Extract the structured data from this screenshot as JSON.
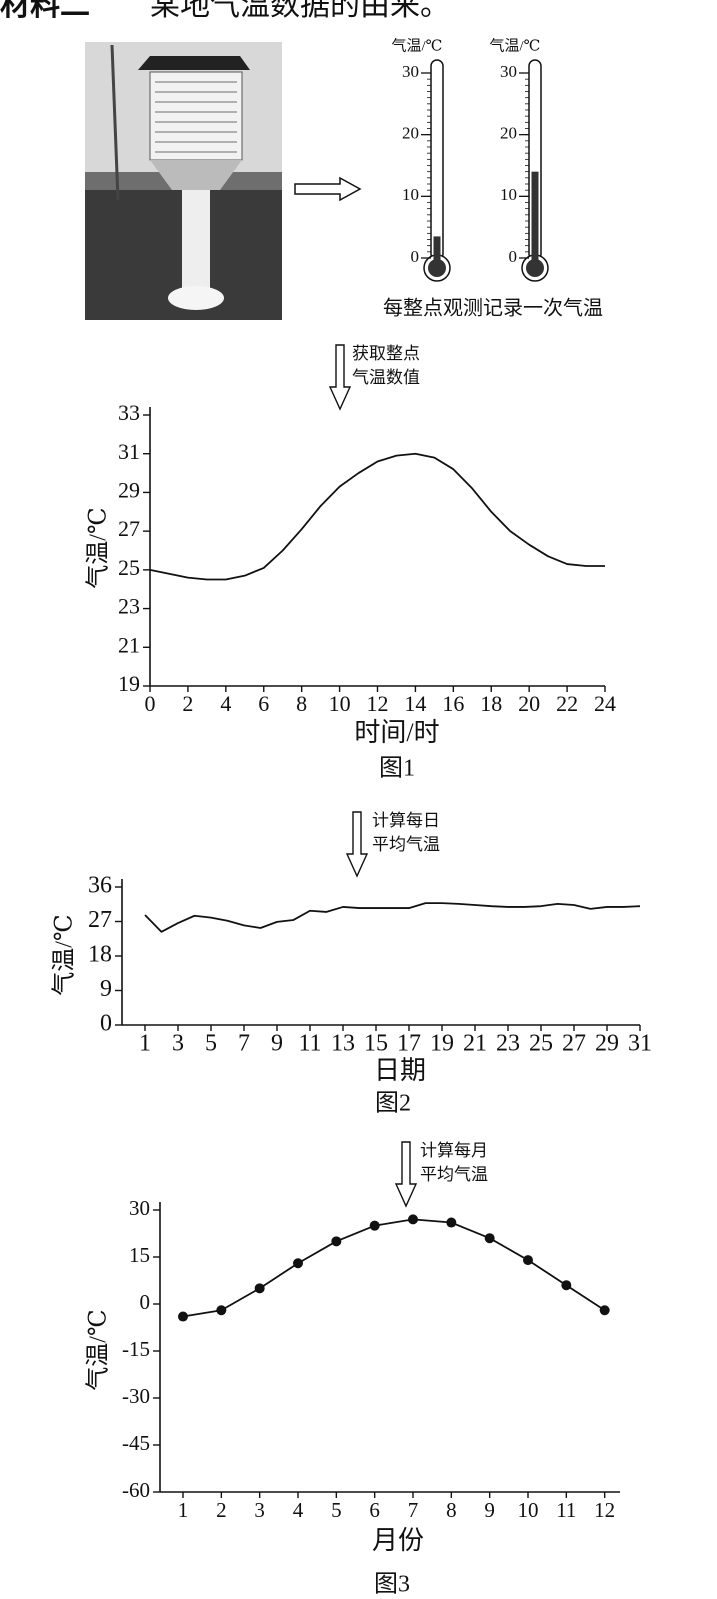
{
  "heading": {
    "label": "材料二",
    "text": "某地气温数据的由来。"
  },
  "thermometers": {
    "ylabel": "气温/℃",
    "ticks": [
      0,
      10,
      20,
      30
    ],
    "readings": [
      3.5,
      14
    ],
    "caption": "每整点观测记录一次气温"
  },
  "arrows": [
    [
      "获取整点",
      "气温数值"
    ],
    [
      "计算每日",
      "平均气温"
    ],
    [
      "计算每月",
      "平均气温"
    ]
  ],
  "chart_data": [
    {
      "type": "line",
      "ylabel": "气温/℃",
      "xlabel": "时间/时",
      "caption": "图1",
      "x": [
        0,
        1,
        2,
        3,
        4,
        5,
        6,
        7,
        8,
        9,
        10,
        11,
        12,
        13,
        14,
        15,
        16,
        17,
        18,
        19,
        20,
        21,
        22,
        23,
        24
      ],
      "values": [
        25.0,
        24.8,
        24.6,
        24.5,
        24.5,
        24.7,
        25.1,
        26.0,
        27.1,
        28.3,
        29.3,
        30.0,
        30.6,
        30.9,
        31.0,
        30.8,
        30.2,
        29.2,
        28.0,
        27.0,
        26.3,
        25.7,
        25.3,
        25.2,
        25.2
      ],
      "xlim": [
        0,
        24
      ],
      "ylim": [
        19,
        33
      ],
      "xticks": [
        0,
        2,
        4,
        6,
        8,
        10,
        12,
        14,
        16,
        18,
        20,
        22,
        24
      ],
      "yticks": [
        19,
        21,
        23,
        25,
        27,
        29,
        31,
        33
      ],
      "markers": false,
      "color": "#111111"
    },
    {
      "type": "line",
      "ylabel": "气温/℃",
      "xlabel": "日期",
      "caption": "图2",
      "x": [
        1,
        2,
        3,
        4,
        5,
        6,
        7,
        8,
        9,
        10,
        11,
        12,
        13,
        14,
        15,
        16,
        17,
        18,
        19,
        20,
        21,
        22,
        23,
        24,
        25,
        26,
        27,
        28,
        29,
        30,
        31
      ],
      "values": [
        28.7,
        24.3,
        26.6,
        28.5,
        28.0,
        27.2,
        26.0,
        25.3,
        26.9,
        27.4,
        29.8,
        29.5,
        30.8,
        30.5,
        30.5,
        30.5,
        30.5,
        31.8,
        31.8,
        31.6,
        31.3,
        31.0,
        30.8,
        30.8,
        31.0,
        31.6,
        31.3,
        30.3,
        30.8,
        30.8,
        31.0
      ],
      "xlim": [
        0,
        31
      ],
      "ylim": [
        0,
        36
      ],
      "xticks": [
        1,
        3,
        5,
        7,
        9,
        11,
        13,
        15,
        17,
        19,
        21,
        23,
        25,
        27,
        29,
        31
      ],
      "yticks": [
        0,
        9,
        18,
        27,
        36
      ],
      "markers": false,
      "color": "#111111"
    },
    {
      "type": "line",
      "ylabel": "气温/℃",
      "xlabel": "月份",
      "caption": "图3",
      "x": [
        1,
        2,
        3,
        4,
        5,
        6,
        7,
        8,
        9,
        10,
        11,
        12
      ],
      "values": [
        -4,
        -2,
        5,
        13,
        20,
        25,
        27,
        26,
        21,
        14,
        6,
        -2
      ],
      "xlim": [
        0.4,
        12.4
      ],
      "ylim": [
        -60,
        30
      ],
      "xticks": [
        1,
        2,
        3,
        4,
        5,
        6,
        7,
        8,
        9,
        10,
        11,
        12
      ],
      "yticks": [
        -60,
        -45,
        -30,
        -15,
        0,
        15,
        30
      ],
      "markers": true,
      "color": "#111111"
    }
  ]
}
